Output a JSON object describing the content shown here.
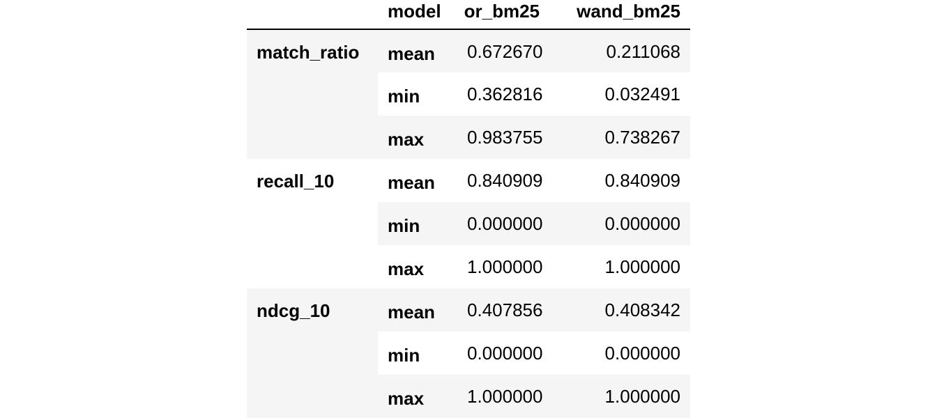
{
  "table": {
    "header": {
      "index_label": "model",
      "columns": [
        "or_bm25",
        "wand_bm25"
      ]
    },
    "groups": [
      {
        "metric": "match_ratio",
        "rows": [
          {
            "stat": "mean",
            "or_bm25": "0.672670",
            "wand_bm25": "0.211068"
          },
          {
            "stat": "min",
            "or_bm25": "0.362816",
            "wand_bm25": "0.032491"
          },
          {
            "stat": "max",
            "or_bm25": "0.983755",
            "wand_bm25": "0.738267"
          }
        ]
      },
      {
        "metric": "recall_10",
        "rows": [
          {
            "stat": "mean",
            "or_bm25": "0.840909",
            "wand_bm25": "0.840909"
          },
          {
            "stat": "min",
            "or_bm25": "0.000000",
            "wand_bm25": "0.000000"
          },
          {
            "stat": "max",
            "or_bm25": "1.000000",
            "wand_bm25": "1.000000"
          }
        ]
      },
      {
        "metric": "ndcg_10",
        "rows": [
          {
            "stat": "mean",
            "or_bm25": "0.407856",
            "wand_bm25": "0.408342"
          },
          {
            "stat": "min",
            "or_bm25": "0.000000",
            "wand_bm25": "0.000000"
          },
          {
            "stat": "max",
            "or_bm25": "1.000000",
            "wand_bm25": "1.000000"
          }
        ]
      }
    ]
  }
}
